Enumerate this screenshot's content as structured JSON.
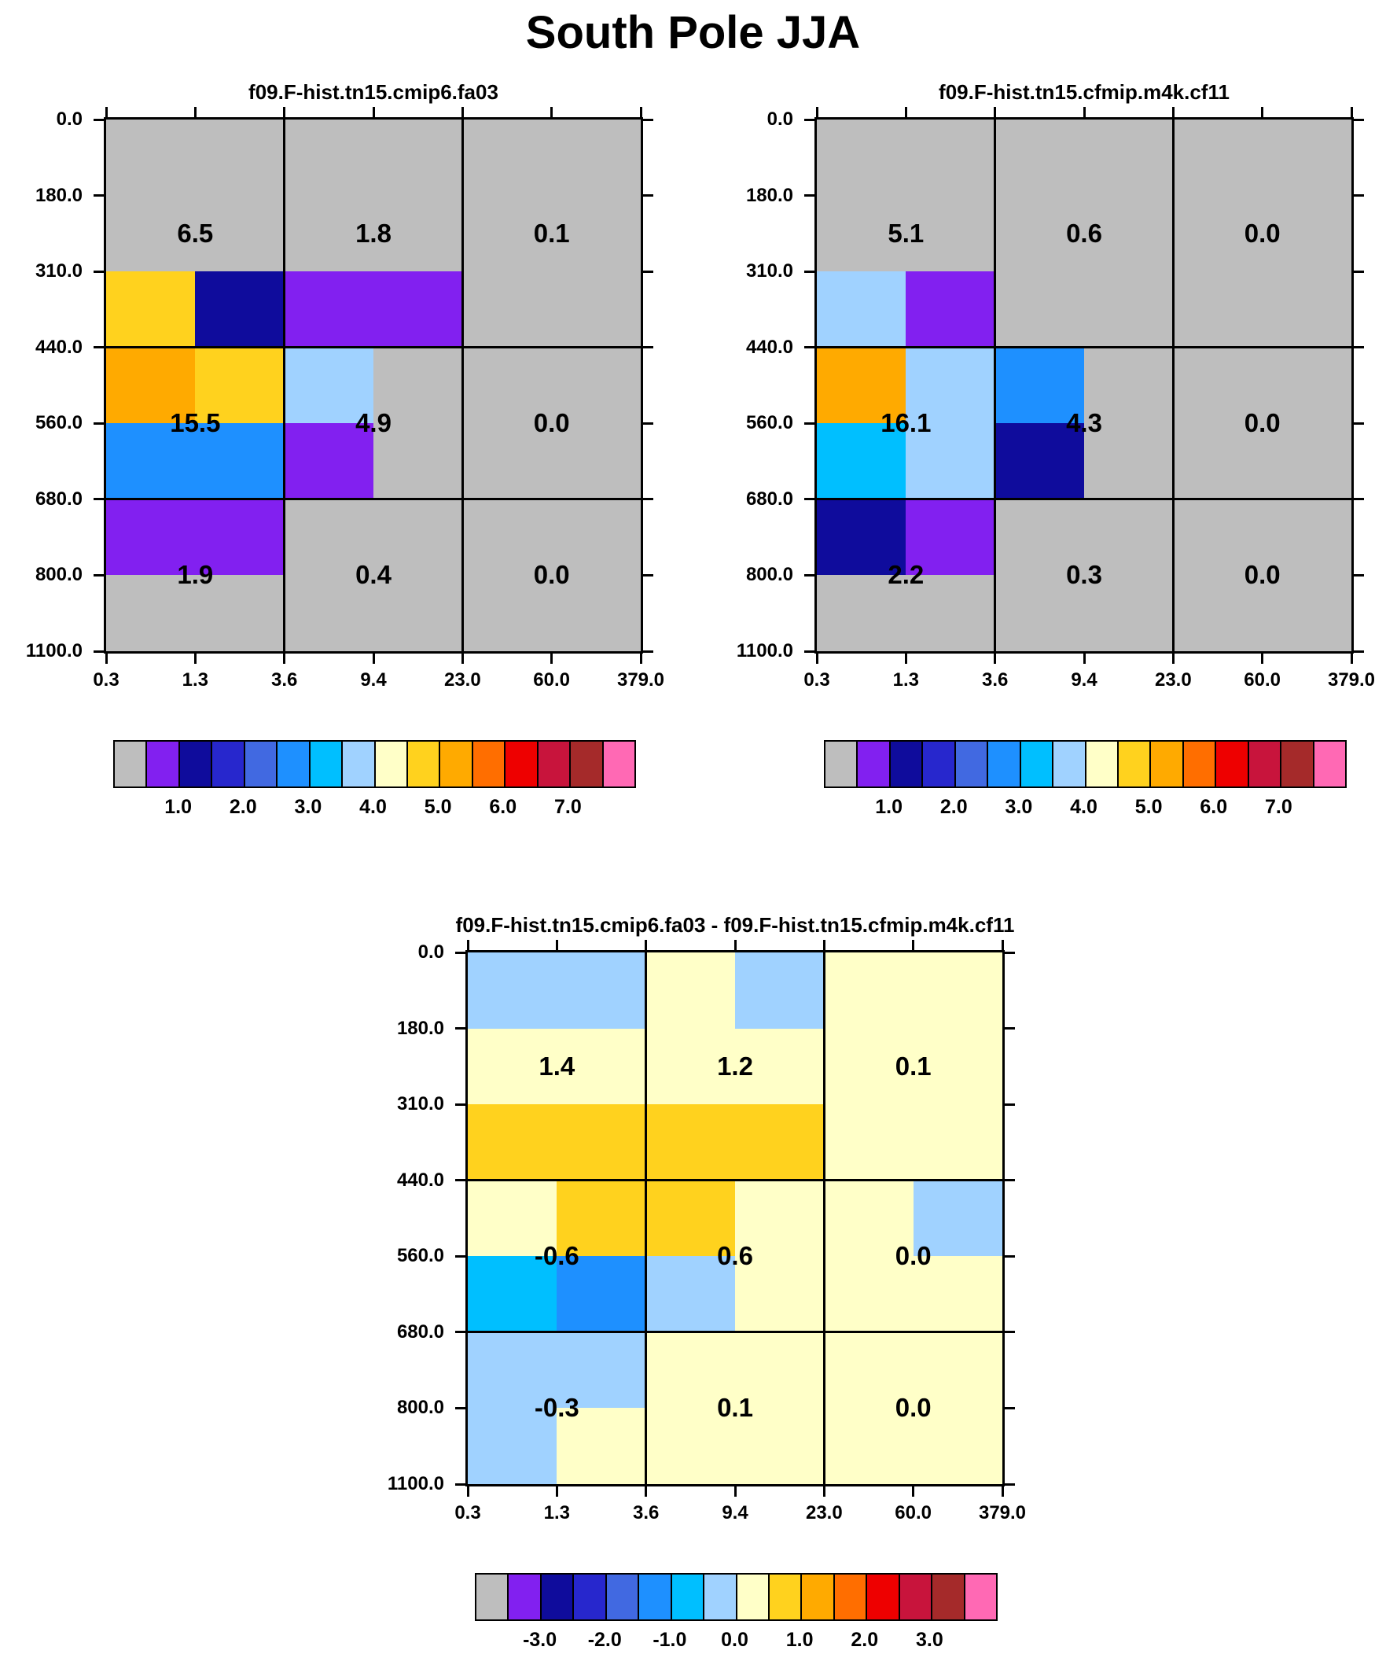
{
  "title": "South Pole JJA",
  "background_color": "#FFFFFF",
  "palette": [
    "#BEBEBE",
    "#8220F0",
    "#0F0C9C",
    "#2727CD",
    "#4169E1",
    "#1E90FF",
    "#00BFFF",
    "#A0D2FF",
    "#FFFFC8",
    "#FFD21E",
    "#FFAA00",
    "#FF6E00",
    "#EE0000",
    "#C8143C",
    "#A52A2A",
    "#FF69B4"
  ],
  "chart_data": [
    {
      "type": "heatmap",
      "title": "f09.F-hist.tn15.cmip6.fa03",
      "x_tick_labels": [
        "0.3",
        "1.3",
        "3.6",
        "9.4",
        "23.0",
        "60.0",
        "379.0"
      ],
      "y_tick_labels": [
        "0.0",
        "180.0",
        "310.0",
        "440.0",
        "560.0",
        "680.0",
        "800.0",
        "1100.0"
      ],
      "cell_color_index": [
        [
          0,
          0,
          0,
          0,
          0,
          0
        ],
        [
          0,
          0,
          0,
          0,
          0,
          0
        ],
        [
          9,
          2,
          1,
          1,
          0,
          0
        ],
        [
          10,
          9,
          7,
          0,
          0,
          0
        ],
        [
          5,
          5,
          1,
          0,
          0,
          0
        ],
        [
          1,
          1,
          0,
          0,
          0,
          0
        ],
        [
          0,
          0,
          0,
          0,
          0,
          0
        ]
      ],
      "region_values": [
        [
          "6.5",
          "1.8",
          "0.1"
        ],
        [
          "15.5",
          "4.9",
          "0.0"
        ],
        [
          "1.9",
          "0.4",
          "0.0"
        ]
      ],
      "colorbar_tick_labels": [
        "1.0",
        "2.0",
        "3.0",
        "4.0",
        "5.0",
        "6.0",
        "7.0"
      ]
    },
    {
      "type": "heatmap",
      "title": "f09.F-hist.tn15.cfmip.m4k.cf11",
      "x_tick_labels": [
        "0.3",
        "1.3",
        "3.6",
        "9.4",
        "23.0",
        "60.0",
        "379.0"
      ],
      "y_tick_labels": [
        "0.0",
        "180.0",
        "310.0",
        "440.0",
        "560.0",
        "680.0",
        "800.0",
        "1100.0"
      ],
      "cell_color_index": [
        [
          0,
          0,
          0,
          0,
          0,
          0
        ],
        [
          0,
          0,
          0,
          0,
          0,
          0
        ],
        [
          7,
          1,
          0,
          0,
          0,
          0
        ],
        [
          10,
          7,
          5,
          0,
          0,
          0
        ],
        [
          6,
          7,
          2,
          0,
          0,
          0
        ],
        [
          2,
          1,
          0,
          0,
          0,
          0
        ],
        [
          0,
          0,
          0,
          0,
          0,
          0
        ]
      ],
      "region_values": [
        [
          "5.1",
          "0.6",
          "0.0"
        ],
        [
          "16.1",
          "4.3",
          "0.0"
        ],
        [
          "2.2",
          "0.3",
          "0.0"
        ]
      ],
      "colorbar_tick_labels": [
        "1.0",
        "2.0",
        "3.0",
        "4.0",
        "5.0",
        "6.0",
        "7.0"
      ]
    },
    {
      "type": "heatmap",
      "title": "f09.F-hist.tn15.cmip6.fa03 - f09.F-hist.tn15.cfmip.m4k.cf11",
      "x_tick_labels": [
        "0.3",
        "1.3",
        "3.6",
        "9.4",
        "23.0",
        "60.0",
        "379.0"
      ],
      "y_tick_labels": [
        "0.0",
        "180.0",
        "310.0",
        "440.0",
        "560.0",
        "680.0",
        "800.0",
        "1100.0"
      ],
      "cell_color_index": [
        [
          7,
          7,
          8,
          7,
          8,
          8
        ],
        [
          8,
          8,
          8,
          8,
          8,
          8
        ],
        [
          9,
          9,
          9,
          9,
          8,
          8
        ],
        [
          8,
          9,
          9,
          8,
          8,
          7
        ],
        [
          6,
          5,
          7,
          8,
          8,
          8
        ],
        [
          7,
          7,
          8,
          8,
          8,
          8
        ],
        [
          7,
          8,
          8,
          8,
          8,
          8
        ]
      ],
      "region_values": [
        [
          "1.4",
          "1.2",
          "0.1"
        ],
        [
          "-0.6",
          "0.6",
          "0.0"
        ],
        [
          "-0.3",
          "0.1",
          "0.0"
        ]
      ],
      "colorbar_tick_labels": [
        "-3.0",
        "-2.0",
        "-1.0",
        "0.0",
        "1.0",
        "2.0",
        "3.0"
      ]
    }
  ]
}
